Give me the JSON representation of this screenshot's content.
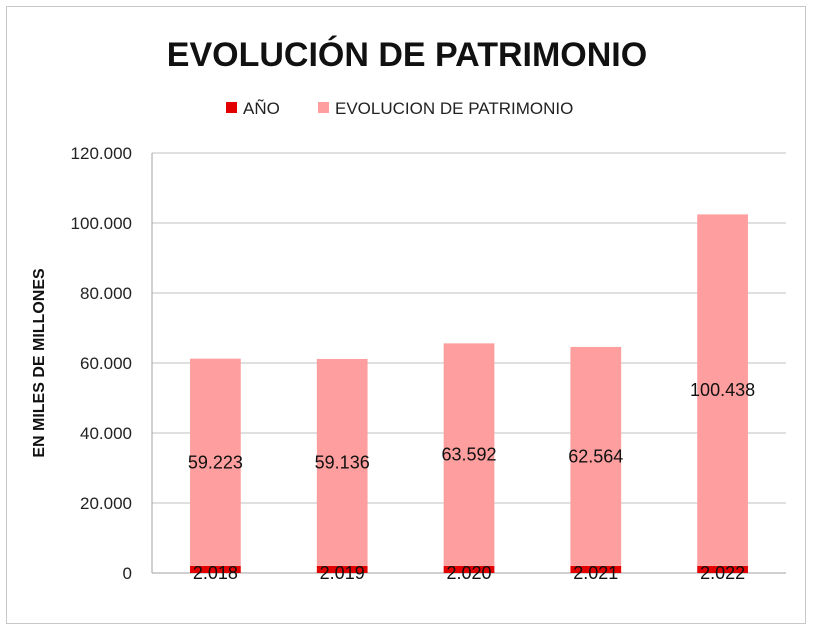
{
  "chart_data": {
    "type": "bar",
    "stacked": true,
    "title": "EVOLUCIÓN DE PATRIMONIO",
    "xlabel": "",
    "ylabel": "EN MILES DE MILLONES",
    "categories": [
      "",
      "",
      "",
      "",
      ""
    ],
    "series": [
      {
        "name": "AÑO",
        "color": "#e30000",
        "values": [
          2018,
          2019,
          2020,
          2021,
          2022
        ],
        "labels": [
          "2.018",
          "2.019",
          "2.020",
          "2.021",
          "2.022"
        ]
      },
      {
        "name": "EVOLUCION DE PATRIMONIO",
        "color": "#ff9e9e",
        "values": [
          59223,
          59136,
          63592,
          62564,
          100438
        ],
        "labels": [
          "59.223",
          "59.136",
          "63.592",
          "62.564",
          "100.438"
        ]
      }
    ],
    "ylim": [
      0,
      120000
    ],
    "yticks": [
      0,
      20000,
      40000,
      60000,
      80000,
      100000,
      120000
    ],
    "ytick_labels": [
      "0",
      "20.000",
      "40.000",
      "60.000",
      "80.000",
      "100.000",
      "120.000"
    ],
    "grid": true,
    "legend_position": "top"
  }
}
